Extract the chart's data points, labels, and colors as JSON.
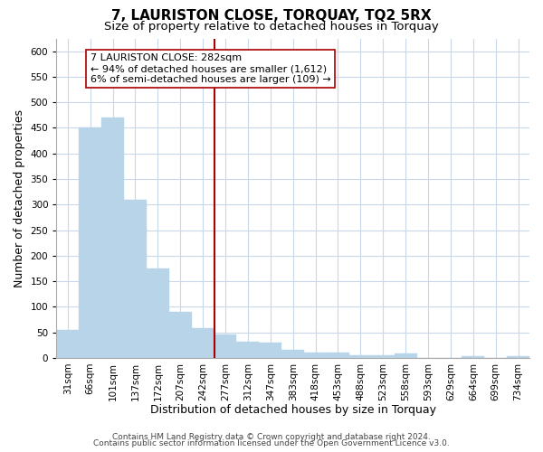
{
  "title": "7, LAURISTON CLOSE, TORQUAY, TQ2 5RX",
  "subtitle": "Size of property relative to detached houses in Torquay",
  "xlabel": "Distribution of detached houses by size in Torquay",
  "ylabel": "Number of detached properties",
  "bar_labels": [
    "31sqm",
    "66sqm",
    "101sqm",
    "137sqm",
    "172sqm",
    "207sqm",
    "242sqm",
    "277sqm",
    "312sqm",
    "347sqm",
    "383sqm",
    "418sqm",
    "453sqm",
    "488sqm",
    "523sqm",
    "558sqm",
    "593sqm",
    "629sqm",
    "664sqm",
    "699sqm",
    "734sqm"
  ],
  "bar_values": [
    55,
    450,
    470,
    310,
    175,
    90,
    58,
    45,
    32,
    30,
    15,
    10,
    10,
    5,
    5,
    8,
    0,
    0,
    4,
    0,
    3
  ],
  "bar_color": "#b8d4e8",
  "vline_x": 7,
  "vline_color": "#aa0000",
  "annotation_title": "7 LAURISTON CLOSE: 282sqm",
  "annotation_line1": "← 94% of detached houses are smaller (1,612)",
  "annotation_line2": "6% of semi-detached houses are larger (109) →",
  "annotation_box_facecolor": "#ffffff",
  "annotation_box_edgecolor": "#aa0000",
  "ylim": [
    0,
    625
  ],
  "yticks": [
    0,
    50,
    100,
    150,
    200,
    250,
    300,
    350,
    400,
    450,
    500,
    550,
    600
  ],
  "footer1": "Contains HM Land Registry data © Crown copyright and database right 2024.",
  "footer2": "Contains public sector information licensed under the Open Government Licence v3.0.",
  "bg_color": "#ffffff",
  "grid_color": "#c8d8e8",
  "title_fontsize": 11,
  "subtitle_fontsize": 9.5,
  "tick_fontsize": 7.5,
  "label_fontsize": 9,
  "footer_fontsize": 6.5,
  "ann_fontsize": 8
}
